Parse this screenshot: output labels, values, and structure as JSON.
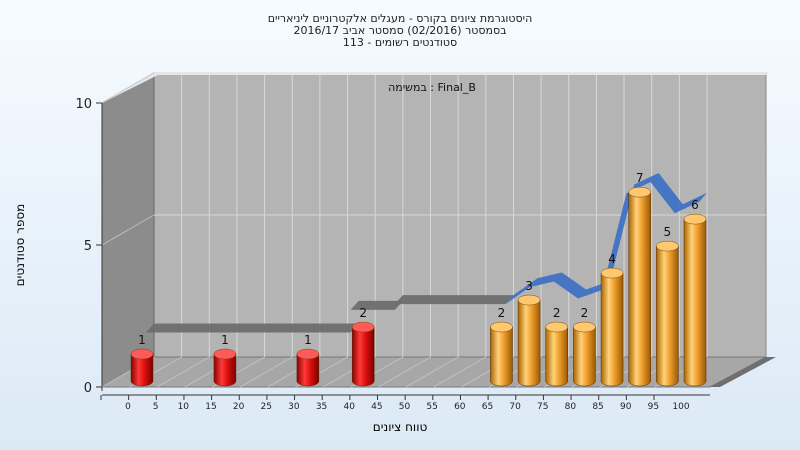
{
  "chart_data": {
    "type": "bar",
    "title_lines": [
      "היסטוגרמת ציונים בקורס - מעגלים אלקטרוניים ליניאריים",
      "בסמסטר  (02/2016)  סמסטר אביב 2016/17",
      "סטודנטים רשומים - 113"
    ],
    "annotation": "במשימה : Final_B",
    "xlabel": "טווח ציונים",
    "ylabel": "מספר סטודנטים",
    "x_ticks": [
      "0",
      "5",
      "10",
      "15",
      "20",
      "25",
      "30",
      "35",
      "40",
      "45",
      "50",
      "55",
      "60",
      "65",
      "70",
      "75",
      "80",
      "85",
      "90",
      "95",
      "100"
    ],
    "y_ticks": [
      "0",
      "5",
      "10"
    ],
    "ylim": [
      0,
      10
    ],
    "bars": [
      {
        "x": 0,
        "value": 1,
        "label": "1",
        "color": "red"
      },
      {
        "x": 15,
        "value": 1,
        "label": "1",
        "color": "red"
      },
      {
        "x": 30,
        "value": 1,
        "label": "1",
        "color": "red"
      },
      {
        "x": 40,
        "value": 2,
        "label": "2",
        "color": "red"
      },
      {
        "x": 65,
        "value": 2,
        "label": "2",
        "color": "orange"
      },
      {
        "x": 70,
        "value": 3,
        "label": "3",
        "color": "orange"
      },
      {
        "x": 75,
        "value": 2,
        "label": "2",
        "color": "orange"
      },
      {
        "x": 80,
        "value": 2,
        "label": "2",
        "color": "orange"
      },
      {
        "x": 85,
        "value": 4,
        "label": "4",
        "color": "orange"
      },
      {
        "x": 90,
        "value": 7,
        "label": "7",
        "color": "orange"
      },
      {
        "x": 95,
        "value": 5,
        "label": "5",
        "color": "orange"
      },
      {
        "x": 100,
        "value": 6,
        "label": "6",
        "color": "orange"
      }
    ],
    "ribbon_segments": [
      {
        "x_from": 0,
        "x_to": 37,
        "value": 1.6,
        "color": "#6e6e6e"
      },
      {
        "x_from": 37,
        "x_to": 45,
        "value": 2.4,
        "color": "#6e6e6e"
      },
      {
        "x_from": 45,
        "x_to": 65,
        "value": 2.6,
        "color": "#6e6e6e"
      },
      {
        "x_from": 65,
        "x_to": 100,
        "values": [
          2.6,
          3.2,
          3.4,
          2.8,
          3.1,
          6.5,
          6.9,
          5.8,
          6.2
        ],
        "color": "#3f72c4"
      }
    ],
    "colors": {
      "red": "#e01010",
      "orange": "#f0a030",
      "wall": "#b4b4b4",
      "side_wall": "#8c8c8c",
      "floor": "#a7a7a7"
    },
    "grid": true
  }
}
